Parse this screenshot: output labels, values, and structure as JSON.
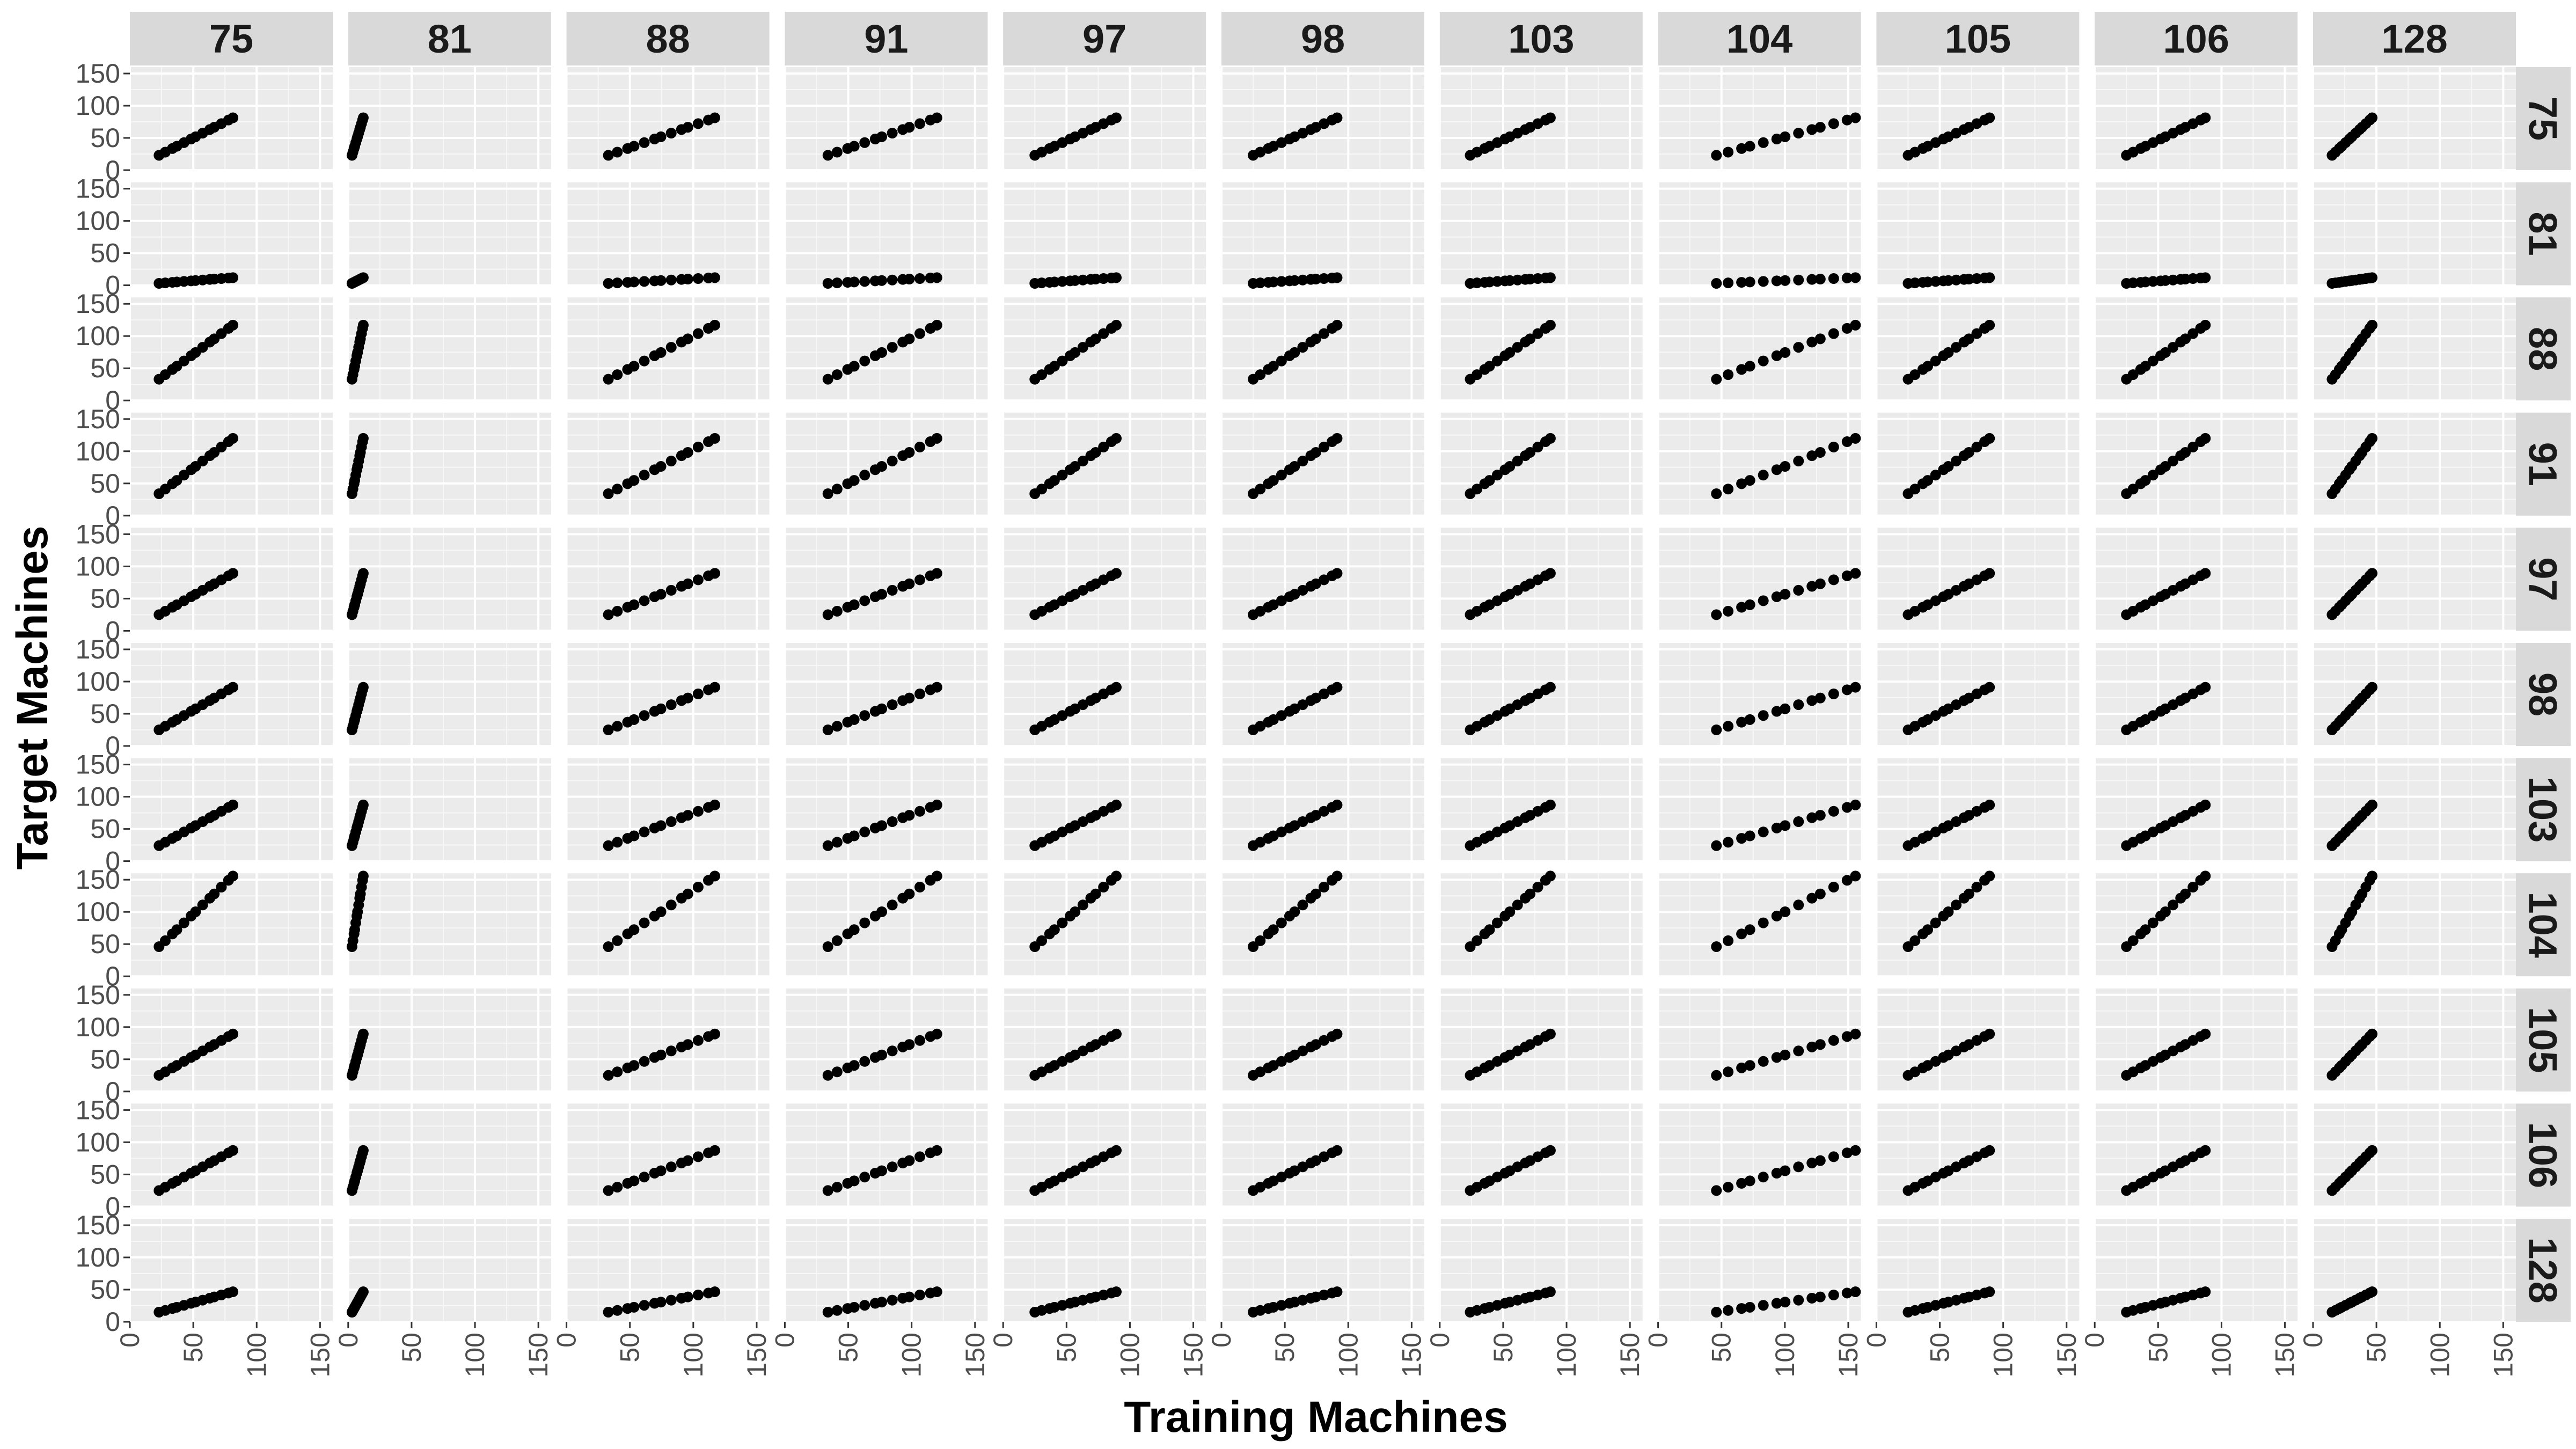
{
  "chart_data": {
    "type": "scatter",
    "layout": "facet_grid",
    "xlabel": "Training Machines",
    "ylabel": "Target Machines",
    "col_facets": [
      "75",
      "81",
      "88",
      "91",
      "97",
      "98",
      "103",
      "104",
      "105",
      "106",
      "128"
    ],
    "row_facets": [
      "75",
      "81",
      "88",
      "91",
      "97",
      "98",
      "103",
      "104",
      "105",
      "106",
      "128"
    ],
    "xlim": [
      0,
      160
    ],
    "ylim": [
      0,
      160
    ],
    "x_ticks": [
      0,
      50,
      100,
      150
    ],
    "y_ticks": [
      0,
      50,
      100,
      150
    ],
    "grid": true,
    "points_per_panel": 13,
    "machine_ranges": {
      "75": [
        23,
        82
      ],
      "81": [
        3,
        12
      ],
      "88": [
        33,
        118
      ],
      "91": [
        34,
        121
      ],
      "97": [
        25,
        90
      ],
      "98": [
        25,
        92
      ],
      "103": [
        24,
        88
      ],
      "104": [
        46,
        157
      ],
      "105": [
        25,
        90
      ],
      "106": [
        25,
        88
      ],
      "128": [
        15,
        47
      ]
    },
    "point_color": "#000000",
    "panel_background": "#EBEBEB",
    "strip_background": "#D9D9D9"
  }
}
